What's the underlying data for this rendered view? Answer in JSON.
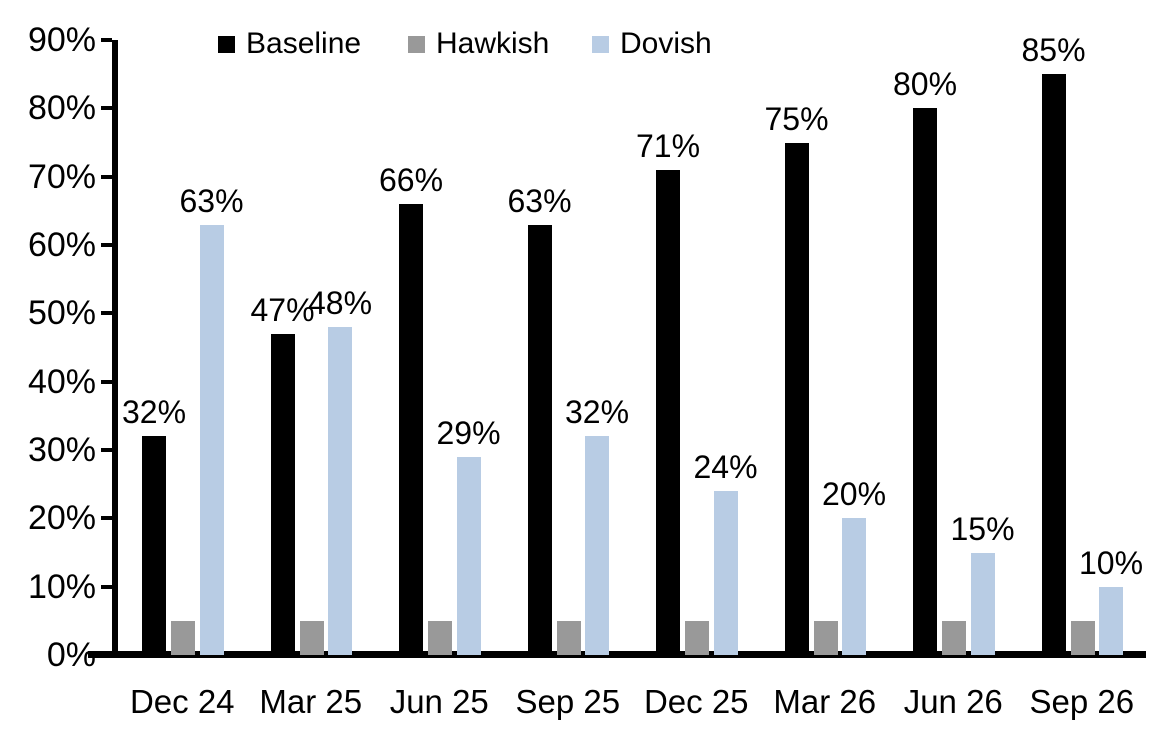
{
  "chart_data": {
    "type": "bar",
    "title": "",
    "xlabel": "",
    "ylabel": "",
    "categories": [
      "Dec 24",
      "Mar 25",
      "Jun 25",
      "Sep 25",
      "Dec 25",
      "Mar 26",
      "Jun 26",
      "Sep 26"
    ],
    "series": [
      {
        "name": "Baseline",
        "color": "#000000",
        "values": [
          32,
          47,
          66,
          63,
          71,
          75,
          80,
          85
        ],
        "labels_shown": true
      },
      {
        "name": "Hawkish",
        "color": "#999999",
        "values": [
          5,
          5,
          5,
          5,
          5,
          5,
          5,
          5
        ],
        "labels_shown": false
      },
      {
        "name": "Dovish",
        "color": "#b8cce4",
        "values": [
          63,
          48,
          29,
          32,
          24,
          20,
          15,
          10
        ],
        "labels_shown": true
      }
    ],
    "value_suffix": "%",
    "ylim": [
      0,
      90
    ],
    "yticks": [
      0,
      10,
      20,
      30,
      40,
      50,
      60,
      70,
      80,
      90
    ],
    "ytick_suffix": "%",
    "grid": false,
    "legend_position": "top",
    "axis_color": "#000000",
    "text_color": "#000000"
  }
}
